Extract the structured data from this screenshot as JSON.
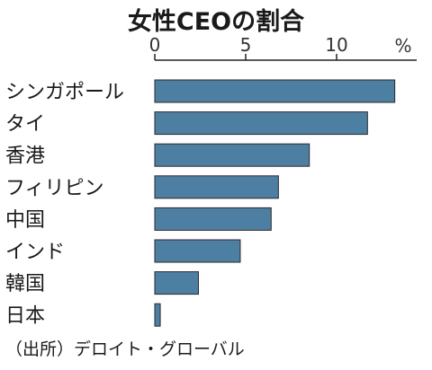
{
  "chart_data": {
    "type": "bar",
    "orientation": "horizontal",
    "title": "女性CEOの割合",
    "unit_label": "%",
    "categories": [
      "シンガポール",
      "タイ",
      "香港",
      "フィリピン",
      "中国",
      "インド",
      "韓国",
      "日本"
    ],
    "values": [
      13.2,
      11.7,
      8.5,
      6.8,
      6.4,
      4.7,
      2.4,
      0.3
    ],
    "x_ticks": [
      0,
      5,
      10
    ],
    "xlim": [
      0,
      14.3
    ],
    "grid": false,
    "bar_color": "#4d7fa3",
    "bar_edge_color": "#2a2a2a",
    "source": "（出所）デロイト・グローバル"
  }
}
